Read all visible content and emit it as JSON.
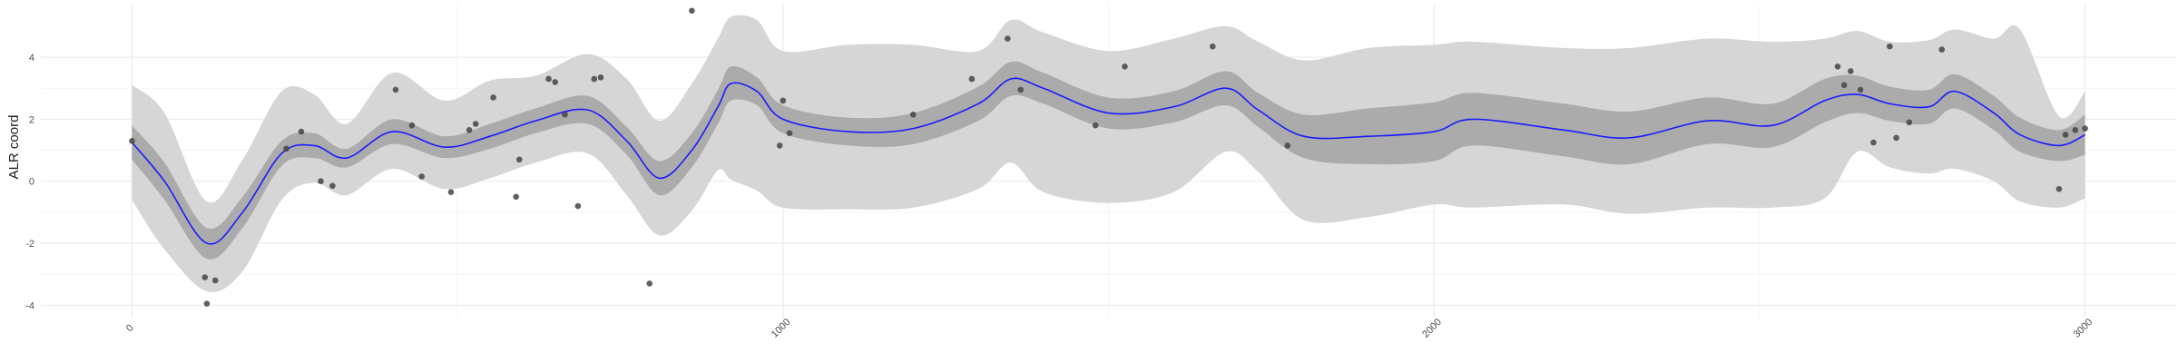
{
  "chart_data": {
    "type": "line",
    "title": "",
    "xlabel": "",
    "ylabel": "ALR coord",
    "xlim": [
      -140,
      3140
    ],
    "ylim": [
      -4.4,
      5.7
    ],
    "x_ticks": [
      0,
      1000,
      2000,
      3000
    ],
    "x_tick_labels": [
      "0",
      "1000",
      "2000",
      "3000"
    ],
    "y_ticks": [
      -4,
      -2,
      0,
      2,
      4
    ],
    "y_tick_labels": [
      "-4",
      "-2",
      "0",
      "2",
      "4"
    ],
    "grid": true,
    "legend": "none",
    "colors": {
      "line": "#1a1aff",
      "inner_band": "#ababab",
      "outer_band": "#d6d6d6",
      "points": "#444444",
      "grid_major": "#ebebeb",
      "grid_minor": "#f4f4f4"
    },
    "series": [
      {
        "kind": "mean_line",
        "x": [
          0,
          50,
          115,
          170,
          230,
          280,
          330,
          400,
          480,
          550,
          620,
          700,
          760,
          810,
          860,
          900,
          920,
          960,
          1000,
          1100,
          1200,
          1300,
          1350,
          1400,
          1500,
          1600,
          1680,
          1730,
          1800,
          1900,
          2000,
          2060,
          2200,
          2300,
          2420,
          2520,
          2600,
          2650,
          2700,
          2760,
          2800,
          2860,
          2900,
          2960,
          3000
        ],
        "y": [
          1.25,
          0.0,
          -2.0,
          -1.0,
          0.9,
          1.15,
          0.75,
          1.6,
          1.1,
          1.45,
          1.95,
          2.3,
          1.3,
          0.1,
          1.0,
          2.4,
          3.15,
          2.9,
          2.0,
          1.6,
          1.7,
          2.5,
          3.3,
          3.0,
          2.2,
          2.4,
          3.0,
          2.3,
          1.45,
          1.45,
          1.6,
          2.0,
          1.65,
          1.4,
          1.95,
          1.8,
          2.6,
          2.8,
          2.5,
          2.4,
          2.9,
          2.2,
          1.5,
          1.15,
          1.5
        ]
      },
      {
        "kind": "inner_band",
        "x": [
          0,
          50,
          115,
          170,
          230,
          280,
          330,
          400,
          480,
          550,
          620,
          700,
          760,
          810,
          860,
          900,
          920,
          960,
          1000,
          1100,
          1200,
          1300,
          1350,
          1400,
          1500,
          1600,
          1680,
          1730,
          1800,
          1900,
          2000,
          2060,
          2200,
          2300,
          2420,
          2520,
          2600,
          2650,
          2700,
          2760,
          2800,
          2860,
          2900,
          2960,
          3000
        ],
        "lower": [
          0.7,
          -0.6,
          -2.5,
          -1.5,
          0.5,
          0.75,
          0.45,
          1.2,
          0.75,
          1.05,
          1.55,
          1.85,
          0.85,
          -0.45,
          0.45,
          1.85,
          2.6,
          2.45,
          1.55,
          1.15,
          1.2,
          1.95,
          2.75,
          2.5,
          1.7,
          1.9,
          2.45,
          1.75,
          0.75,
          0.55,
          0.65,
          1.15,
          0.8,
          0.55,
          1.2,
          1.1,
          1.9,
          2.2,
          1.95,
          1.85,
          2.35,
          1.65,
          0.95,
          0.65,
          0.85
        ],
        "upper": [
          1.8,
          0.6,
          -1.5,
          -0.5,
          1.3,
          1.55,
          1.05,
          2.0,
          1.45,
          1.85,
          2.35,
          2.75,
          1.75,
          0.65,
          1.55,
          2.95,
          3.7,
          3.35,
          2.45,
          2.05,
          2.2,
          3.05,
          3.85,
          3.5,
          2.7,
          2.9,
          3.55,
          2.85,
          2.15,
          2.35,
          2.55,
          2.85,
          2.5,
          2.25,
          2.7,
          2.5,
          3.3,
          3.4,
          3.05,
          2.95,
          3.45,
          2.75,
          2.05,
          1.65,
          2.15
        ]
      },
      {
        "kind": "outer_band",
        "x": [
          0,
          50,
          115,
          170,
          230,
          280,
          330,
          400,
          480,
          550,
          620,
          700,
          760,
          810,
          860,
          900,
          920,
          960,
          1000,
          1100,
          1200,
          1300,
          1350,
          1400,
          1500,
          1600,
          1680,
          1730,
          1800,
          1900,
          2000,
          2060,
          2200,
          2300,
          2420,
          2520,
          2600,
          2650,
          2700,
          2760,
          2800,
          2860,
          2900,
          2960,
          3000
        ],
        "lower": [
          -0.6,
          -2.2,
          -3.55,
          -2.9,
          -0.6,
          -0.05,
          -0.45,
          0.4,
          -0.25,
          0.1,
          0.6,
          0.9,
          -0.45,
          -1.75,
          -0.95,
          0.35,
          0.05,
          -0.3,
          -0.85,
          -0.9,
          -0.85,
          -0.25,
          0.6,
          -0.35,
          -0.7,
          -0.35,
          0.95,
          0.3,
          -1.25,
          -1.15,
          -0.75,
          -0.85,
          -0.75,
          -1.05,
          -0.85,
          -0.85,
          -0.55,
          0.95,
          0.45,
          0.25,
          0.4,
          0.0,
          -0.65,
          -0.85,
          -0.55
        ],
        "upper": [
          3.1,
          2.2,
          -0.65,
          0.7,
          2.9,
          2.8,
          1.85,
          3.5,
          2.6,
          3.25,
          3.4,
          4.1,
          3.3,
          1.95,
          3.15,
          4.6,
          5.3,
          5.2,
          4.2,
          4.4,
          4.4,
          4.2,
          5.2,
          4.8,
          4.2,
          4.6,
          5.0,
          4.5,
          3.9,
          4.3,
          4.4,
          4.5,
          4.3,
          4.3,
          4.6,
          4.5,
          4.6,
          4.85,
          4.5,
          4.55,
          4.9,
          4.6,
          4.9,
          2.1,
          2.9
        ]
      }
    ],
    "points": {
      "x": [
        0,
        112,
        115,
        128,
        237,
        260,
        290,
        308,
        405,
        430,
        445,
        490,
        518,
        528,
        555,
        590,
        595,
        640,
        650,
        665,
        685,
        710,
        720,
        795,
        860,
        995,
        1000,
        1010,
        1200,
        1290,
        1345,
        1365,
        1480,
        1525,
        1660,
        1775,
        2620,
        2630,
        2640,
        2655,
        2675,
        2700,
        2710,
        2730,
        2780,
        2960,
        2970,
        2985,
        3000
      ],
      "y": [
        1.3,
        -3.1,
        -3.95,
        -3.2,
        1.05,
        1.6,
        0.0,
        -0.15,
        2.95,
        1.8,
        0.15,
        -0.35,
        1.65,
        1.85,
        2.7,
        -0.5,
        0.7,
        3.3,
        3.2,
        2.15,
        -0.8,
        3.3,
        3.35,
        -3.3,
        5.5,
        1.15,
        2.6,
        1.55,
        2.15,
        3.3,
        4.6,
        2.95,
        1.8,
        3.7,
        4.35,
        1.15,
        3.7,
        3.1,
        3.55,
        2.95,
        1.25,
        4.35,
        1.4,
        1.9,
        4.25,
        -0.25,
        1.5,
        1.65,
        1.7
      ]
    }
  }
}
